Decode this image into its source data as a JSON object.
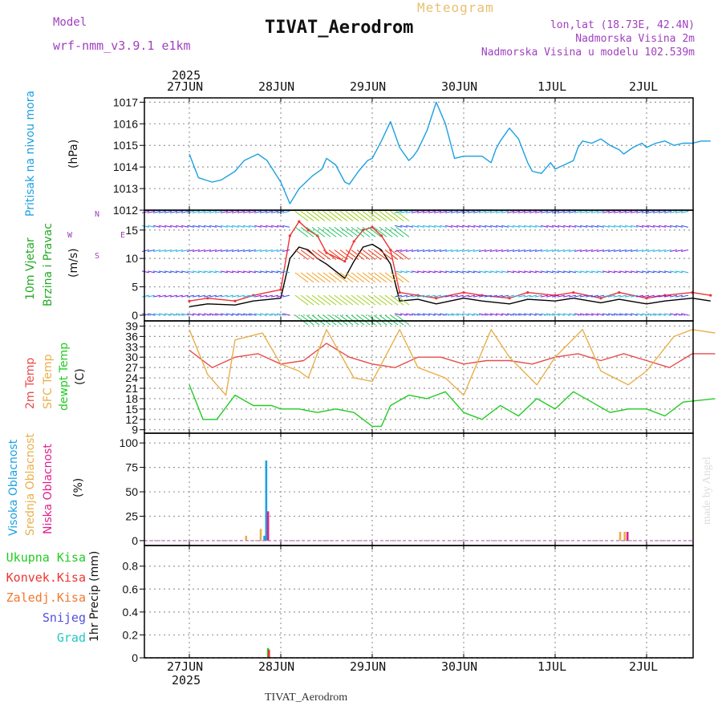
{
  "header": {
    "model_label": "Model",
    "model_name": "wrf-nmm_v3.9.1 e1km",
    "product": "Meteogram",
    "station": "TIVAT_Aerodrom",
    "coords": "lon,lat (18.73E, 42.4N)",
    "elevation": "Nadmorska Visina 2m",
    "model_elevation": "Nadmorska Visina u modelu 102.539m",
    "footer_station": "TIVAT_Aerodrom",
    "credit": "made by Angel"
  },
  "colors": {
    "pressure": "#1ca0e0",
    "wind_speed": "#000000",
    "gust": "#ee3333",
    "t2m": "#e84c4c",
    "tsfc": "#e8b04a",
    "dewpt": "#22cc22",
    "high_cloud": "#1ca0e0",
    "mid_cloud": "#e8b04a",
    "low_cloud": "#e0208a",
    "precip_total": "#22cc22",
    "precip_conv": "#ee3333",
    "precip_frozen": "#f07830",
    "precip_snow": "#5050e0",
    "precip_hail": "#22c8c8"
  },
  "chart_data": [
    {
      "type": "line",
      "panel": "pressure",
      "title_lines": [
        "Pritisak na nivou mora"
      ],
      "ylabel": "(hPa)",
      "ylim": [
        1012,
        1017.2
      ],
      "yticks": [
        1012,
        1013,
        1014,
        1015,
        1016,
        1017
      ],
      "x_axis": {
        "year": "2025",
        "ticks": [
          "27JUN",
          "28JUN",
          "29JUN",
          "30JUN",
          "1JUL",
          "2JUL"
        ]
      },
      "grid": true,
      "series": [
        {
          "key": "pressure",
          "x": [
            0.0,
            0.1,
            0.25,
            0.35,
            0.5,
            0.6,
            0.75,
            0.85,
            1.0,
            1.1,
            1.2,
            1.25,
            1.35,
            1.45,
            1.5,
            1.6,
            1.7,
            1.75,
            1.85,
            1.95,
            2.0,
            2.1,
            2.2,
            2.3,
            2.4,
            2.45,
            2.5,
            2.6,
            2.7,
            2.75,
            2.8,
            2.9,
            3.0,
            3.1,
            3.2,
            3.3,
            3.35,
            3.4,
            3.5,
            3.6,
            3.7,
            3.75,
            3.85,
            3.95,
            4.0,
            4.1,
            4.2,
            4.25,
            4.3,
            4.4,
            4.5,
            4.6,
            4.7,
            4.75,
            4.85,
            4.95,
            5.0,
            5.1,
            5.2,
            5.3,
            5.4,
            5.5,
            5.6,
            5.7
          ],
          "values": [
            1014.6,
            1013.5,
            1013.3,
            1013.4,
            1013.8,
            1014.3,
            1014.6,
            1014.3,
            1013.3,
            1012.3,
            1013.0,
            1013.2,
            1013.6,
            1013.9,
            1014.4,
            1014.1,
            1013.3,
            1013.2,
            1013.8,
            1014.3,
            1014.4,
            1015.2,
            1016.1,
            1014.9,
            1014.3,
            1014.5,
            1014.8,
            1015.7,
            1017.0,
            1016.5,
            1016.0,
            1014.4,
            1014.5,
            1014.5,
            1014.5,
            1014.2,
            1014.8,
            1015.2,
            1015.8,
            1015.3,
            1014.2,
            1013.8,
            1013.7,
            1014.2,
            1013.9,
            1014.1,
            1014.3,
            1014.9,
            1015.2,
            1015.1,
            1015.3,
            1015.0,
            1014.8,
            1014.6,
            1014.9,
            1015.1,
            1014.9,
            1015.1,
            1015.2,
            1015.0,
            1015.1,
            1015.1,
            1015.2,
            1015.2
          ]
        }
      ]
    },
    {
      "type": "line",
      "panel": "wind",
      "title_lines": [
        "10m Vjetar",
        "Brzina i Pravac"
      ],
      "ylabel": "(m/s)",
      "compass_labels": [
        "W",
        "E",
        "N",
        "S"
      ],
      "ylim": [
        -1,
        18.5
      ],
      "yticks": [
        0,
        5,
        10,
        15
      ],
      "grid": true,
      "series": [
        {
          "key": "wind_speed",
          "x": [
            0.0,
            0.2,
            0.5,
            0.7,
            1.0,
            1.1,
            1.2,
            1.3,
            1.4,
            1.5,
            1.7,
            1.8,
            1.9,
            2.0,
            2.1,
            2.2,
            2.3,
            2.5,
            2.7,
            3.0,
            3.2,
            3.5,
            3.7,
            4.0,
            4.2,
            4.5,
            4.7,
            5.0,
            5.2,
            5.5,
            5.7
          ],
          "values": [
            1.5,
            2.0,
            1.8,
            2.5,
            3.0,
            10.0,
            12.0,
            11.5,
            10.0,
            9.0,
            6.5,
            9.5,
            12.0,
            12.5,
            11.5,
            9.0,
            2.5,
            2.8,
            2.0,
            3.0,
            2.5,
            2.0,
            2.8,
            2.5,
            3.0,
            2.2,
            2.8,
            2.0,
            2.5,
            3.0,
            2.5
          ]
        },
        {
          "key": "gust",
          "x": [
            0.0,
            0.2,
            0.5,
            0.7,
            1.0,
            1.1,
            1.2,
            1.3,
            1.4,
            1.5,
            1.7,
            1.8,
            1.9,
            2.0,
            2.1,
            2.2,
            2.3,
            2.5,
            2.7,
            3.0,
            3.2,
            3.5,
            3.7,
            4.0,
            4.2,
            4.5,
            4.7,
            5.0,
            5.2,
            5.5,
            5.7
          ],
          "values": [
            2.5,
            3.0,
            2.5,
            3.5,
            4.5,
            14.0,
            16.5,
            15.0,
            14.0,
            11.0,
            9.5,
            13.0,
            15.0,
            15.5,
            14.0,
            11.5,
            4.0,
            3.5,
            3.0,
            4.0,
            3.5,
            3.0,
            4.0,
            3.5,
            4.0,
            3.0,
            4.0,
            3.0,
            3.5,
            4.0,
            3.5
          ]
        }
      ]
    },
    {
      "type": "line",
      "panel": "temperature",
      "title_lines": [
        "2m Temp",
        "SFC Temp",
        "dewpt Temp"
      ],
      "ylabel": "(C)",
      "ylim": [
        8,
        40.5
      ],
      "yticks": [
        9,
        12,
        15,
        18,
        21,
        24,
        27,
        30,
        33,
        36,
        39
      ],
      "grid": true,
      "series": [
        {
          "key": "t2m",
          "x": [
            0.0,
            0.25,
            0.5,
            0.75,
            1.0,
            1.25,
            1.5,
            1.75,
            2.0,
            2.25,
            2.5,
            2.75,
            3.0,
            3.25,
            3.5,
            3.75,
            4.0,
            4.25,
            4.5,
            4.75,
            5.0,
            5.25,
            5.5,
            5.75
          ],
          "values": [
            32,
            27,
            30,
            31,
            28,
            29,
            34,
            30,
            28,
            27,
            30,
            30,
            28,
            29,
            29,
            28,
            30,
            31,
            29,
            31,
            29,
            27,
            31,
            31
          ]
        },
        {
          "key": "tsfc",
          "x": [
            0.0,
            0.2,
            0.4,
            0.5,
            0.8,
            1.0,
            1.2,
            1.3,
            1.5,
            1.8,
            2.0,
            2.3,
            2.5,
            2.8,
            3.0,
            3.3,
            3.5,
            3.8,
            4.0,
            4.3,
            4.5,
            4.8,
            5.0,
            5.3,
            5.5,
            5.75
          ],
          "values": [
            38,
            25,
            19,
            35,
            37,
            28,
            26,
            24,
            38,
            24,
            23,
            38,
            27,
            24,
            19,
            38,
            30,
            22,
            30,
            38,
            26,
            22,
            26,
            36,
            38,
            37
          ]
        },
        {
          "key": "dewpt",
          "x": [
            0.0,
            0.15,
            0.3,
            0.5,
            0.7,
            0.9,
            1.0,
            1.2,
            1.4,
            1.6,
            1.8,
            2.0,
            2.1,
            2.2,
            2.4,
            2.6,
            2.8,
            3.0,
            3.2,
            3.4,
            3.6,
            3.8,
            4.0,
            4.2,
            4.4,
            4.6,
            4.8,
            5.0,
            5.2,
            5.4,
            5.75
          ],
          "values": [
            22,
            12,
            12,
            19,
            16,
            16,
            15,
            15,
            14,
            15,
            14,
            10,
            10,
            16,
            19,
            18,
            20,
            14,
            12,
            16,
            13,
            18,
            15,
            20,
            17,
            14,
            15,
            15,
            13,
            17,
            18
          ]
        }
      ]
    },
    {
      "type": "bar",
      "panel": "cloud",
      "title_lines": [
        "Visoka Oblacnost",
        "Srednja Oblacnost",
        "Niska Oblacnost"
      ],
      "ylabel": "(%)",
      "ylim": [
        -5,
        110
      ],
      "yticks": [
        0,
        25,
        50,
        75,
        100
      ],
      "grid": true,
      "series": [
        {
          "key": "high_cloud",
          "x": [
            0.82,
            0.84
          ],
          "values": [
            5,
            82
          ]
        },
        {
          "key": "mid_cloud",
          "x": [
            0.62,
            0.78,
            4.71,
            4.76
          ],
          "values": [
            5,
            12,
            9,
            9
          ]
        },
        {
          "key": "low_cloud",
          "x": [
            0.86,
            4.79
          ],
          "values": [
            30,
            9
          ]
        }
      ]
    },
    {
      "type": "bar",
      "panel": "precip",
      "title_lines": [
        "Ukupna Kisa",
        "Konvek.Kisa",
        "Zaledj.Kisa",
        "Snijeg",
        "Grad"
      ],
      "ylabel": "1hr Precip (mm)",
      "ylim": [
        0,
        0.98
      ],
      "yticks": [
        0,
        0.2,
        0.4,
        0.6,
        0.8
      ],
      "x_axis": {
        "year": "2025",
        "ticks": [
          "27JUN",
          "28JUN",
          "29JUN",
          "30JUN",
          "1JUL",
          "2JUL"
        ]
      },
      "grid": true,
      "series": [
        {
          "key": "precip_total",
          "x": [
            0.86
          ],
          "values": [
            0.085
          ]
        },
        {
          "key": "precip_conv",
          "x": [
            0.87
          ],
          "values": [
            0.07
          ]
        }
      ]
    }
  ]
}
